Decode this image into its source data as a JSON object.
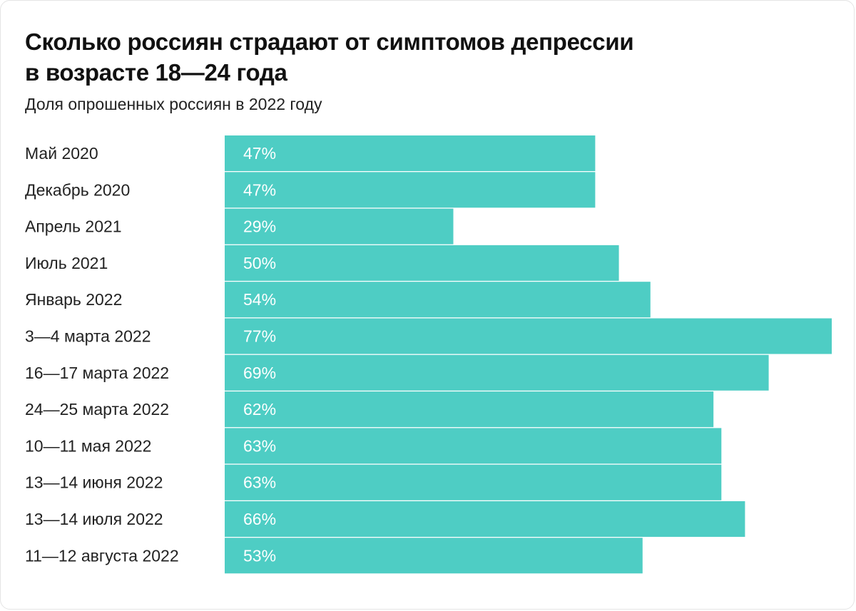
{
  "title_line1": "Сколько россиян страдают от симптомов депрессии",
  "title_line2": "в возрасте 18—24 года",
  "subtitle": "Доля опрошенных россиян в 2022 году",
  "colors": {
    "bar": "#4ecdc4",
    "bar_label": "#ffffff",
    "category_label": "#222222"
  },
  "chart_data": {
    "type": "bar",
    "orientation": "horizontal",
    "categories": [
      "Май 2020",
      "Декабрь 2020",
      "Апрель 2021",
      "Июль 2021",
      "Январь 2022",
      "3—4 марта 2022",
      "16—17 марта 2022",
      "24—25 марта 2022",
      "10—11 мая 2022",
      "13—14 июня 2022",
      "13—14 июля 2022",
      "11—12 августа 2022"
    ],
    "values": [
      47,
      47,
      29,
      50,
      54,
      77,
      69,
      62,
      63,
      63,
      66,
      53
    ],
    "data_labels": [
      "47%",
      "47%",
      "29%",
      "50%",
      "54%",
      "77%",
      "69%",
      "62%",
      "63%",
      "63%",
      "66%",
      "53%"
    ],
    "value_unit": "%",
    "xlim": [
      0,
      77
    ],
    "grid": false,
    "legend": false
  }
}
